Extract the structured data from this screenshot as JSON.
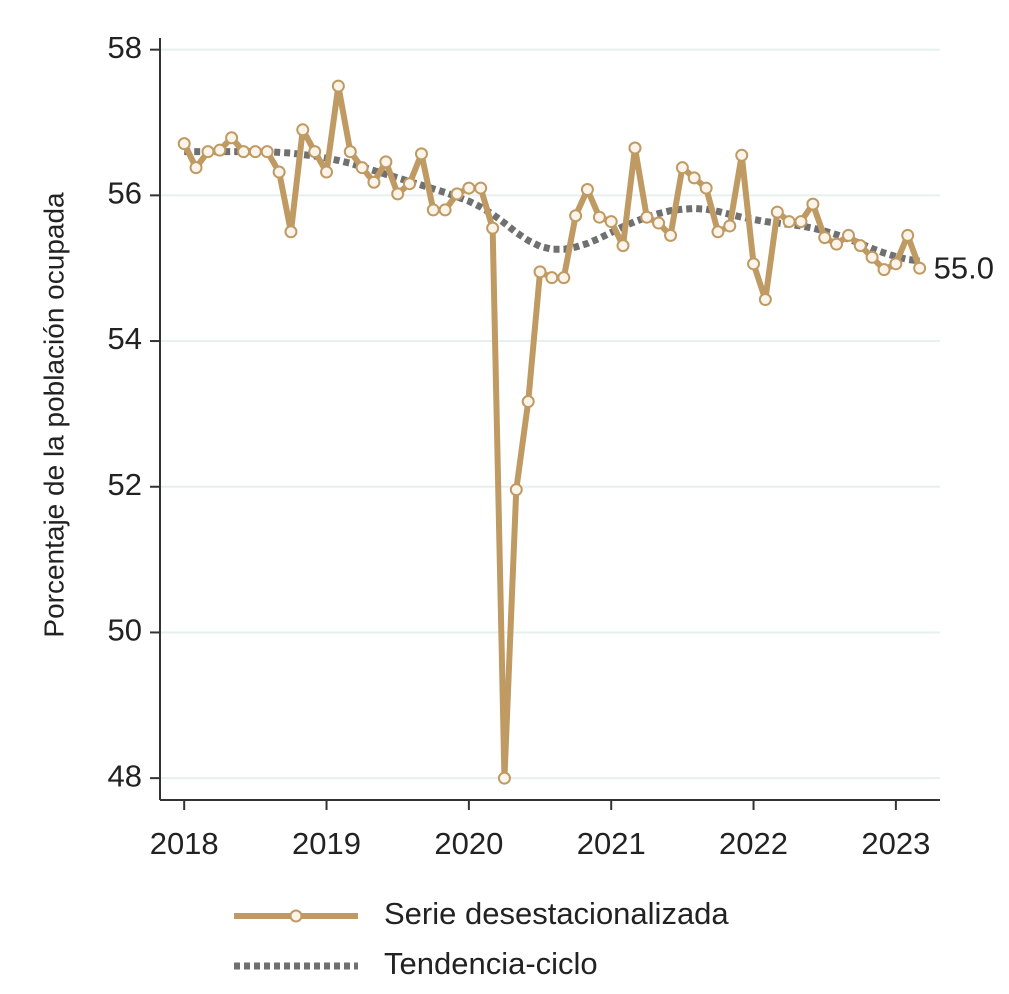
{
  "chart_data": {
    "type": "line",
    "y_label": "Porcentaje de la población ocupada",
    "xlim": [
      2017.83,
      2023.31
    ],
    "ylim": [
      47.7,
      58.16
    ],
    "xticks": [
      2018,
      2019,
      2020,
      2021,
      2022,
      2023
    ],
    "yticks": [
      48,
      50,
      52,
      54,
      56,
      58
    ],
    "grid": true,
    "legend": "bottom",
    "x": [
      2018,
      2018.083,
      2018.167,
      2018.25,
      2018.333,
      2018.417,
      2018.5,
      2018.583,
      2018.667,
      2018.75,
      2018.833,
      2018.917,
      2019,
      2019.083,
      2019.167,
      2019.25,
      2019.333,
      2019.417,
      2019.5,
      2019.583,
      2019.667,
      2019.75,
      2019.833,
      2019.917,
      2020,
      2020.083,
      2020.167,
      2020.25,
      2020.333,
      2020.417,
      2020.5,
      2020.583,
      2020.667,
      2020.75,
      2020.833,
      2020.917,
      2021,
      2021.083,
      2021.167,
      2021.25,
      2021.333,
      2021.417,
      2021.5,
      2021.583,
      2021.667,
      2021.75,
      2021.833,
      2021.917,
      2022,
      2022.083,
      2022.167,
      2022.25,
      2022.333,
      2022.417,
      2022.5,
      2022.583,
      2022.667,
      2022.75,
      2022.833,
      2022.917,
      2023,
      2023.083,
      2023.167
    ],
    "series": [
      {
        "name": "Serie desestacionalizada",
        "color": "#bf9a62",
        "style": "solid",
        "markers": true,
        "values": [
          56.71,
          56.38,
          56.6,
          56.62,
          56.79,
          56.6,
          56.6,
          56.6,
          56.32,
          55.5,
          56.9,
          56.6,
          56.32,
          57.5,
          56.6,
          56.38,
          56.18,
          56.46,
          56.02,
          56.16,
          56.57,
          55.8,
          55.8,
          56.02,
          56.1,
          56.1,
          55.55,
          48.0,
          51.96,
          53.17,
          54.95,
          54.87,
          54.87,
          55.72,
          56.08,
          55.7,
          55.64,
          55.31,
          56.65,
          55.7,
          55.62,
          55.45,
          56.38,
          56.24,
          56.1,
          55.5,
          55.58,
          56.55,
          55.06,
          54.57,
          55.77,
          55.64,
          55.64,
          55.88,
          55.42,
          55.33,
          55.45,
          55.31,
          55.15,
          54.98,
          55.06,
          55.45,
          55.0
        ],
        "value_labels": [
          null,
          null,
          null,
          null,
          null,
          null,
          null,
          null,
          null,
          null,
          null,
          null,
          null,
          null,
          null,
          null,
          null,
          null,
          null,
          null,
          null,
          null,
          null,
          null,
          null,
          null,
          null,
          null,
          null,
          null,
          null,
          null,
          null,
          null,
          null,
          null,
          null,
          null,
          null,
          null,
          null,
          null,
          null,
          null,
          null,
          null,
          null,
          null,
          null,
          null,
          null,
          null,
          null,
          null,
          null,
          null,
          null,
          null,
          null,
          null,
          null,
          null,
          "55.0"
        ]
      },
      {
        "name": "Tendencia-ciclo",
        "color": "#707070",
        "style": "dotted",
        "markers": false,
        "values": [
          56.6,
          56.6,
          56.6,
          56.6,
          56.6,
          56.6,
          56.6,
          56.6,
          56.59,
          56.58,
          56.56,
          56.54,
          56.51,
          56.48,
          56.44,
          56.39,
          56.34,
          56.29,
          56.24,
          56.19,
          56.14,
          56.09,
          56.04,
          55.98,
          55.92,
          55.84,
          55.74,
          55.62,
          55.49,
          55.38,
          55.3,
          55.26,
          55.26,
          55.29,
          55.34,
          55.41,
          55.49,
          55.57,
          55.64,
          55.7,
          55.75,
          55.79,
          55.81,
          55.82,
          55.81,
          55.78,
          55.74,
          55.7,
          55.67,
          55.64,
          55.62,
          55.6,
          55.58,
          55.55,
          55.51,
          55.46,
          55.4,
          55.34,
          55.27,
          55.21,
          55.16,
          55.12,
          55.1
        ]
      }
    ]
  }
}
